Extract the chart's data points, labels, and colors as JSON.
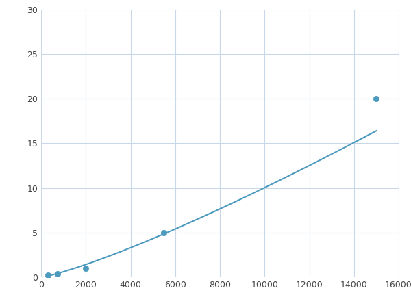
{
  "x_points": [
    300,
    750,
    2000,
    5500,
    15000
  ],
  "y_points": [
    0.2,
    0.35,
    1.0,
    5.0,
    20.0
  ],
  "line_color": "#4d9abf",
  "marker_color": "#4d9abf",
  "marker_size": 6,
  "line_width": 1.5,
  "xlim": [
    0,
    16000
  ],
  "ylim": [
    0,
    30
  ],
  "xticks": [
    0,
    2000,
    4000,
    6000,
    8000,
    10000,
    12000,
    14000,
    16000
  ],
  "yticks": [
    0,
    5,
    10,
    15,
    20,
    25,
    30
  ],
  "grid_color": "#c8d8e8",
  "background_color": "#ffffff",
  "figsize": [
    6.0,
    4.5
  ],
  "dpi": 100
}
